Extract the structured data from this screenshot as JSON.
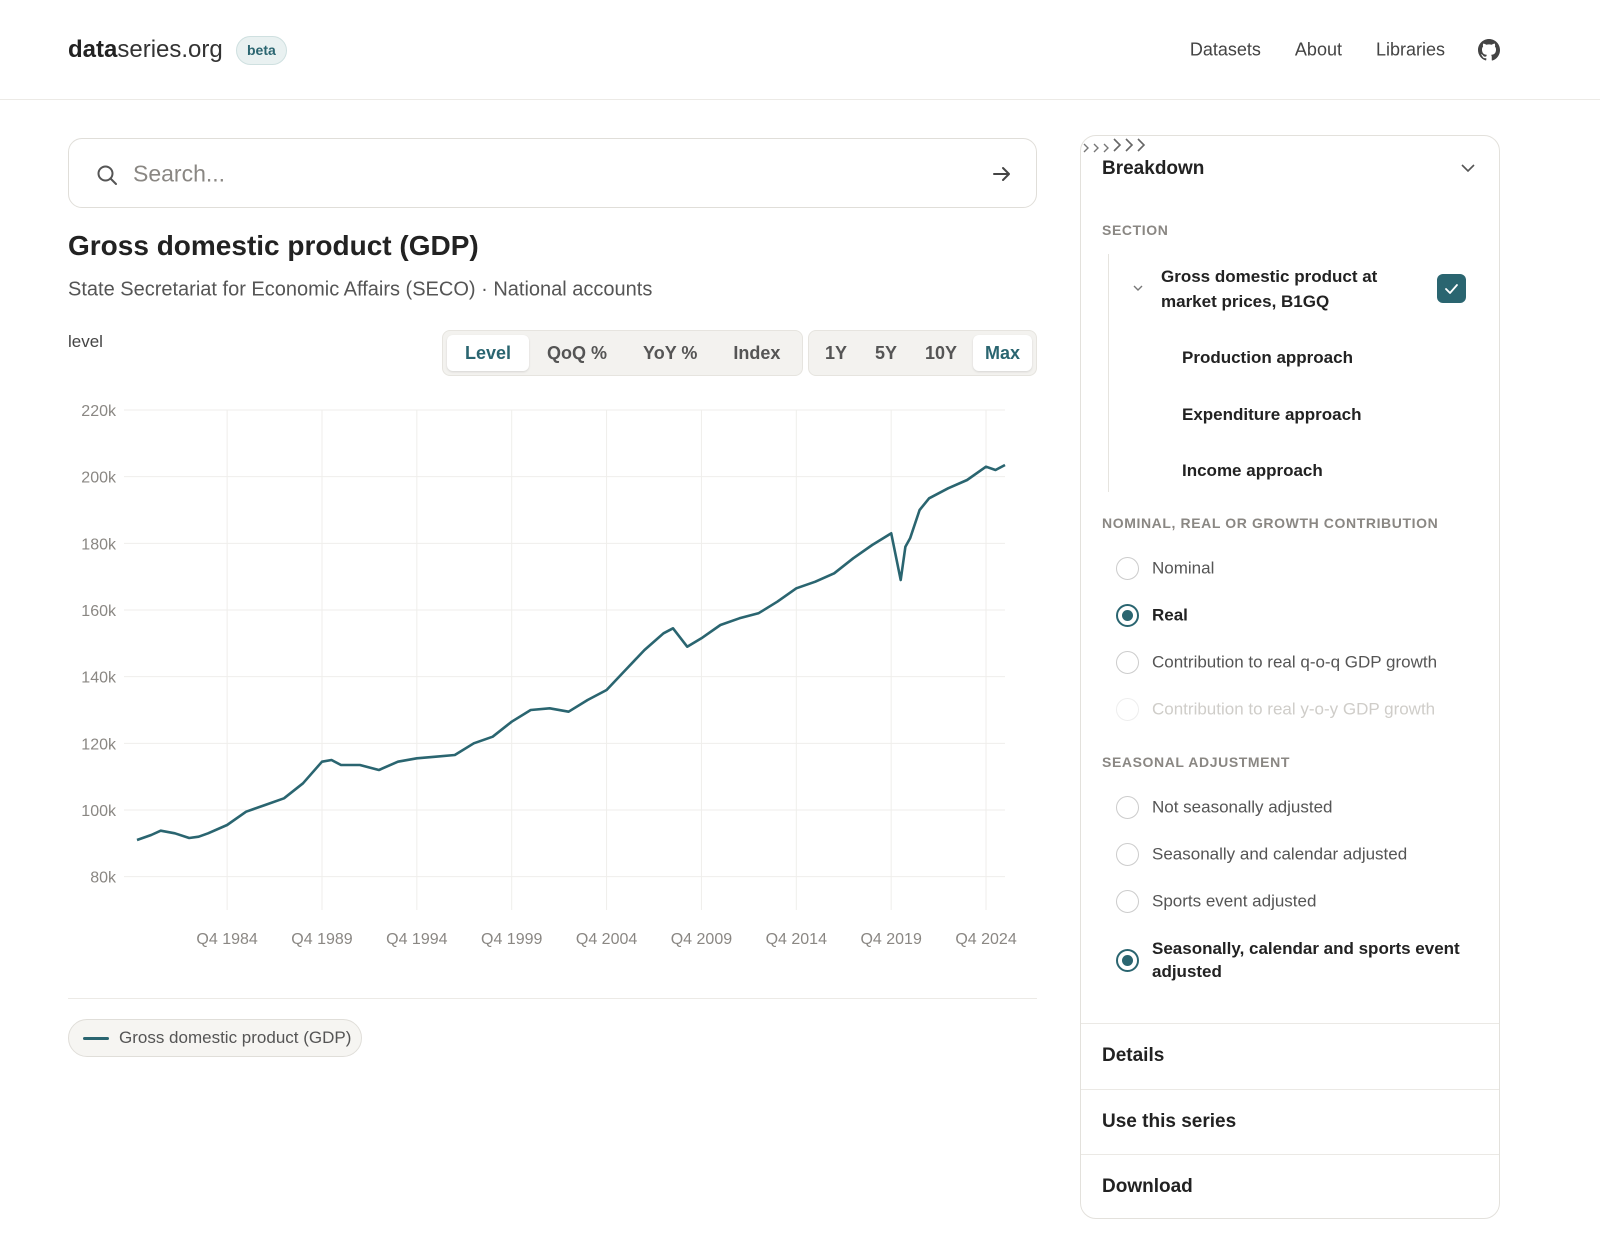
{
  "header": {
    "brand_bold": "data",
    "brand_rest": "series.org",
    "badge": "beta",
    "nav": [
      "Datasets",
      "About",
      "Libraries"
    ]
  },
  "search": {
    "placeholder": "Search..."
  },
  "title": "Gross domestic product (GDP)",
  "subtitle": "State Secretariat for Economic Affairs (SECO) · National accounts",
  "unit_label": "level",
  "modes": [
    "Level",
    "QoQ %",
    "YoY %",
    "Index"
  ],
  "active_mode": 0,
  "ranges": [
    "1Y",
    "5Y",
    "10Y",
    "Max"
  ],
  "active_range": 3,
  "chart_data": {
    "type": "line",
    "x": [
      "Q1 1980",
      "Q4 1980",
      "Q2 1981",
      "Q1 1982",
      "Q4 1982",
      "Q2 1983",
      "Q4 1983",
      "Q4 1984",
      "Q4 1985",
      "Q4 1986",
      "Q4 1987",
      "Q4 1988",
      "Q4 1989",
      "Q2 1990",
      "Q4 1990",
      "Q4 1991",
      "Q4 1992",
      "Q4 1993",
      "Q4 1994",
      "Q4 1995",
      "Q4 1996",
      "Q4 1997",
      "Q4 1998",
      "Q4 1999",
      "Q4 2000",
      "Q4 2001",
      "Q4 2002",
      "Q4 2003",
      "Q4 2004",
      "Q4 2005",
      "Q4 2006",
      "Q4 2007",
      "Q2 2008",
      "Q1 2009",
      "Q4 2009",
      "Q4 2010",
      "Q4 2011",
      "Q4 2012",
      "Q4 2013",
      "Q4 2014",
      "Q4 2015",
      "Q4 2016",
      "Q4 2017",
      "Q4 2018",
      "Q4 2019",
      "Q2 2020",
      "Q3 2020",
      "Q4 2020",
      "Q2 2021",
      "Q4 2021",
      "Q4 2022",
      "Q4 2023",
      "Q4 2024",
      "Q2 2025",
      "Q4 2025"
    ],
    "series": [
      {
        "name": "Gross domestic product (GDP)",
        "color": "#2a6570",
        "values": [
          91000,
          92500,
          93800,
          93000,
          91600,
          92000,
          93000,
          95500,
          99500,
          101500,
          103500,
          108000,
          114500,
          115000,
          113500,
          113500,
          112000,
          114500,
          115500,
          116000,
          116500,
          120000,
          122000,
          126500,
          130000,
          130500,
          129500,
          133000,
          136000,
          142000,
          148000,
          153000,
          154500,
          149000,
          151500,
          155500,
          157500,
          159000,
          162500,
          166500,
          168500,
          171000,
          175500,
          179500,
          183000,
          169000,
          179000,
          181500,
          190000,
          193500,
          196500,
          199000,
          203000,
          202000,
          203500
        ]
      }
    ],
    "ylim": [
      70000,
      220000
    ],
    "yticks": [
      {
        "value": 80000,
        "label": "80k"
      },
      {
        "value": 100000,
        "label": "100k"
      },
      {
        "value": 120000,
        "label": "120k"
      },
      {
        "value": 140000,
        "label": "140k"
      },
      {
        "value": 160000,
        "label": "160k"
      },
      {
        "value": 180000,
        "label": "180k"
      },
      {
        "value": 200000,
        "label": "200k"
      },
      {
        "value": 220000,
        "label": "220k"
      }
    ],
    "xticks": [
      "Q4 1984",
      "Q4 1989",
      "Q4 1994",
      "Q4 1999",
      "Q4 2004",
      "Q4 2009",
      "Q4 2014",
      "Q4 2019",
      "Q4 2024"
    ],
    "grid": true
  },
  "sidebar": {
    "title": "Breakdown",
    "section": {
      "heading": "SECTION",
      "item": "Gross domestic product at market prices, B1GQ",
      "children": [
        "Production approach",
        "Expenditure approach",
        "Income approach"
      ]
    },
    "groups": [
      {
        "heading": "NOMINAL, REAL OR GROWTH CONTRIBUTION",
        "options": [
          "Nominal",
          "Real",
          "Contribution to real q-o-q GDP growth",
          "Contribution to real y-o-y GDP growth"
        ],
        "selected": 1,
        "disabled": [
          3
        ]
      },
      {
        "heading": "SEASONAL ADJUSTMENT",
        "options": [
          "Not seasonally adjusted",
          "Seasonally and calendar adjusted",
          "Sports event adjusted",
          "Seasonally, calendar and sports event adjusted"
        ],
        "selected": 3,
        "disabled": []
      }
    ],
    "footer": [
      "Details",
      "Use this series",
      "Download"
    ]
  }
}
